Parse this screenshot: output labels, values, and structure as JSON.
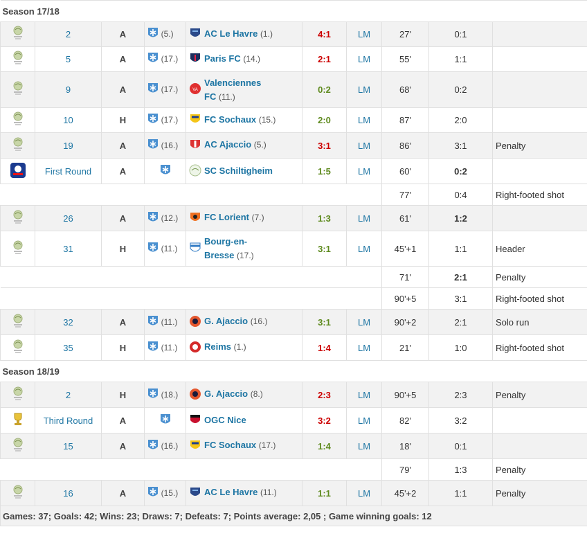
{
  "seasons": [
    {
      "title": "Season 17/18",
      "rows": [
        {
          "bg": "grey",
          "h": 36,
          "comp": "ligue2",
          "matchday": "2",
          "venue": "A",
          "own_rank": "(5.)",
          "opp_crest": "havre",
          "opp": "AC Le Havre",
          "opp_rank": "(1.)",
          "opp_wrap": false,
          "result": "4:1",
          "res_class": "win",
          "pos": "LM",
          "minute": "27'",
          "score": "0:1",
          "score_bold": false,
          "type": ""
        },
        {
          "bg": "white",
          "h": 36,
          "comp": "ligue2",
          "matchday": "5",
          "venue": "A",
          "own_rank": "(17.)",
          "opp_crest": "paris",
          "opp": "Paris FC",
          "opp_rank": "(14.)",
          "opp_wrap": false,
          "result": "2:1",
          "res_class": "win",
          "pos": "LM",
          "minute": "55'",
          "score": "1:1",
          "score_bold": false,
          "type": ""
        },
        {
          "bg": "grey",
          "h": 52,
          "comp": "ligue2",
          "matchday": "9",
          "venue": "A",
          "own_rank": "(17.)",
          "opp_crest": "valenc",
          "opp": "Valenciennes FC",
          "opp_rank": "(11.)",
          "opp_wrap": true,
          "result": "0:2",
          "res_class": "draw",
          "pos": "LM",
          "minute": "68'",
          "score": "0:2",
          "score_bold": false,
          "type": ""
        },
        {
          "bg": "white",
          "h": 36,
          "comp": "ligue2",
          "matchday": "10",
          "venue": "H",
          "own_rank": "(17.)",
          "opp_crest": "sochaux",
          "opp": "FC Sochaux",
          "opp_rank": "(15.)",
          "opp_wrap": false,
          "result": "2:0",
          "res_class": "draw",
          "pos": "LM",
          "minute": "87'",
          "score": "2:0",
          "score_bold": false,
          "type": ""
        },
        {
          "bg": "grey",
          "h": 37,
          "comp": "ligue2",
          "matchday": "19",
          "venue": "A",
          "own_rank": "(16.)",
          "opp_crest": "ajaccio",
          "opp": "AC Ajaccio",
          "opp_rank": "(5.)",
          "opp_wrap": false,
          "result": "3:1",
          "res_class": "win",
          "pos": "LM",
          "minute": "86'",
          "score": "3:1",
          "score_bold": false,
          "type": "Penalty"
        },
        {
          "bg": "white",
          "h": 37,
          "comp": "coupe",
          "matchday": "First Round",
          "venue": "A",
          "own_rank": "",
          "opp_crest": "schilt",
          "opp": "SC Schiltigheim",
          "opp_rank": "",
          "opp_wrap": false,
          "result": "1:5",
          "res_class": "draw",
          "pos": "LM",
          "minute": "60'",
          "score": "0:2",
          "score_bold": true,
          "type": ""
        },
        {
          "bg": "white",
          "h": 31,
          "extra": true,
          "minute": "77'",
          "score": "0:4",
          "score_bold": false,
          "type": "Right-footed shot"
        },
        {
          "bg": "grey",
          "h": 37,
          "comp": "ligue2",
          "matchday": "26",
          "venue": "A",
          "own_rank": "(12.)",
          "opp_crest": "lorient",
          "opp": "FC Lorient",
          "opp_rank": "(7.)",
          "opp_wrap": false,
          "result": "1:3",
          "res_class": "draw",
          "pos": "LM",
          "minute": "61'",
          "score": "1:2",
          "score_bold": true,
          "type": ""
        },
        {
          "bg": "white",
          "h": 51,
          "comp": "ligue2",
          "matchday": "31",
          "venue": "H",
          "own_rank": "(11.)",
          "opp_crest": "bourg",
          "opp": "Bourg-en-Bresse",
          "opp_rank": "(17.)",
          "opp_wrap": true,
          "result": "3:1",
          "res_class": "draw",
          "pos": "LM",
          "minute": "45'+1",
          "score": "1:1",
          "score_bold": false,
          "type": "Header"
        },
        {
          "bg": "white",
          "h": 31,
          "extra": true,
          "minute": "71'",
          "score": "2:1",
          "score_bold": true,
          "type": "Penalty"
        },
        {
          "bg": "white",
          "h": 31,
          "extra": true,
          "minute": "90'+5",
          "score": "3:1",
          "score_bold": false,
          "type": "Right-footed shot"
        },
        {
          "bg": "grey",
          "h": 37,
          "comp": "ligue2",
          "matchday": "32",
          "venue": "A",
          "own_rank": "(11.)",
          "opp_crest": "gajaccio",
          "opp": "G. Ajaccio",
          "opp_rank": "(16.)",
          "opp_wrap": false,
          "result": "3:1",
          "res_class": "draw",
          "pos": "LM",
          "minute": "90'+2",
          "score": "2:1",
          "score_bold": false,
          "type": "Solo run"
        },
        {
          "bg": "white",
          "h": 37,
          "comp": "ligue2",
          "matchday": "35",
          "venue": "H",
          "own_rank": "(11.)",
          "opp_crest": "reims",
          "opp": "Reims",
          "opp_rank": "(1.)",
          "opp_wrap": false,
          "result": "1:4",
          "res_class": "win",
          "pos": "LM",
          "minute": "21'",
          "score": "1:0",
          "score_bold": false,
          "type": "Right-footed shot"
        }
      ]
    },
    {
      "title": "Season 18/19",
      "rows": [
        {
          "bg": "grey",
          "h": 37,
          "comp": "ligue2",
          "matchday": "2",
          "venue": "H",
          "own_rank": "(18.)",
          "opp_crest": "gajaccio",
          "opp": "G. Ajaccio",
          "opp_rank": "(8.)",
          "opp_wrap": false,
          "result": "2:3",
          "res_class": "win",
          "pos": "LM",
          "minute": "90'+5",
          "score": "2:3",
          "score_bold": false,
          "type": "Penalty"
        },
        {
          "bg": "white",
          "h": 37,
          "comp": "cupl",
          "matchday": "Third Round",
          "venue": "A",
          "own_rank": "",
          "opp_crest": "nice",
          "opp": "OGC Nice",
          "opp_rank": "",
          "opp_wrap": false,
          "result": "3:2",
          "res_class": "win",
          "pos": "LM",
          "minute": "82'",
          "score": "3:2",
          "score_bold": false,
          "type": ""
        },
        {
          "bg": "grey",
          "h": 37,
          "comp": "ligue2",
          "matchday": "15",
          "venue": "A",
          "own_rank": "(16.)",
          "opp_crest": "sochaux",
          "opp": "FC Sochaux",
          "opp_rank": "(17.)",
          "opp_wrap": false,
          "result": "1:4",
          "res_class": "draw",
          "pos": "LM",
          "minute": "18'",
          "score": "0:1",
          "score_bold": false,
          "type": ""
        },
        {
          "bg": "white",
          "h": 31,
          "extra": true,
          "minute": "79'",
          "score": "1:3",
          "score_bold": false,
          "type": "Penalty"
        },
        {
          "bg": "grey",
          "h": 37,
          "comp": "ligue2",
          "matchday": "16",
          "venue": "A",
          "own_rank": "(15.)",
          "opp_crest": "havre",
          "opp": "AC Le Havre",
          "opp_rank": "(11.)",
          "opp_wrap": false,
          "result": "1:1",
          "res_class": "draw",
          "pos": "LM",
          "minute": "45'+2",
          "score": "1:1",
          "score_bold": false,
          "type": "Penalty"
        }
      ]
    }
  ],
  "footer": "Games: 37; Goals: 42; Wins: 23; Draws: 7; Defeats: 7; Points average: 2,05 ; Game winning goals: 12",
  "colors": {
    "link": "#1d75a3",
    "win": "#cc0000",
    "draw": "#5e8a1e",
    "row_grey": "#f2f2f2"
  }
}
